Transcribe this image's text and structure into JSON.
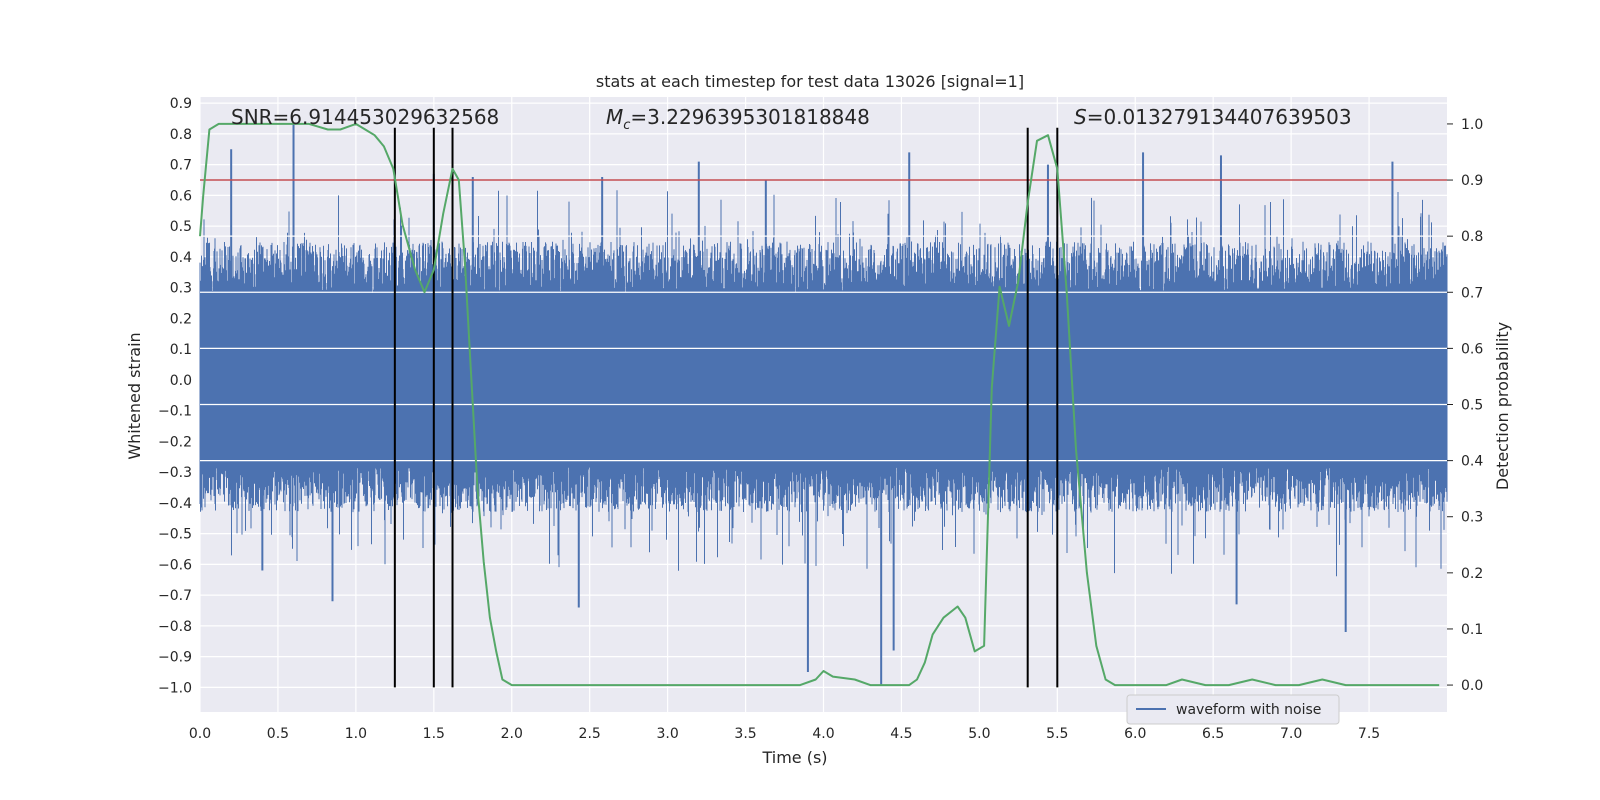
{
  "chart_data": {
    "type": "line",
    "title": "stats at each timestep for test data 13026 [signal=1]",
    "xlabel": "Time (s)",
    "ylabel_left": "Whitened strain",
    "ylabel_right": "Detection probability",
    "xlim": [
      0.0,
      8.0
    ],
    "ylim_left": [
      -1.08,
      0.92
    ],
    "ylim_right": [
      -0.048,
      1.048
    ],
    "x_ticks": [
      0.0,
      0.5,
      1.0,
      1.5,
      2.0,
      2.5,
      3.0,
      3.5,
      4.0,
      4.5,
      5.0,
      5.5,
      6.0,
      6.5,
      7.0,
      7.5
    ],
    "x_tick_labels": [
      "0.0",
      "0.5",
      "1.0",
      "1.5",
      "2.0",
      "2.5",
      "3.0",
      "3.5",
      "4.0",
      "4.5",
      "5.0",
      "5.5",
      "6.0",
      "6.5",
      "7.0",
      "7.5"
    ],
    "y_left_ticks": [
      0.9,
      0.8,
      0.7,
      0.6,
      0.5,
      0.4,
      0.3,
      0.2,
      0.1,
      0.0,
      -0.1,
      -0.2,
      -0.3,
      -0.4,
      -0.5,
      -0.6,
      -0.7,
      -0.8,
      -0.9,
      -1.0
    ],
    "y_left_tick_labels": [
      "0.9",
      "0.8",
      "0.7",
      "0.6",
      "0.5",
      "0.4",
      "0.3",
      "0.2",
      "0.1",
      "0.0",
      "−0.1",
      "−0.2",
      "−0.3",
      "−0.4",
      "−0.5",
      "−0.6",
      "−0.7",
      "−0.8",
      "−0.9",
      "−1.0"
    ],
    "y_right_ticks": [
      1.0,
      0.9,
      0.8,
      0.7,
      0.6,
      0.5,
      0.4,
      0.3,
      0.2,
      0.1,
      0.0
    ],
    "y_right_tick_labels": [
      "1.0",
      "0.9",
      "0.8",
      "0.7",
      "0.6",
      "0.5",
      "0.4",
      "0.3",
      "0.2",
      "0.1",
      "0.0"
    ],
    "grid": true,
    "annotations": {
      "snr": "SNR=6.914453029632568",
      "mc_symbol": "M",
      "mc_sub": "c",
      "mc_value": "=3.2296395301818848",
      "s_symbol": "S",
      "s_value": "=0.013279134407639503"
    },
    "legend": {
      "label": "waveform with noise",
      "placement": "lower-right"
    },
    "threshold_probability": 0.9,
    "vertical_lines_time": [
      1.25,
      1.5,
      1.62,
      5.31,
      5.5
    ],
    "vertical_lines_range": [
      -1.0,
      0.82
    ],
    "waveform": {
      "name": "waveform with noise",
      "color": "#4c72b0",
      "core_band": [
        -0.28,
        0.28
      ],
      "typical_envelope": [
        -0.43,
        0.45
      ],
      "peaks_up": [
        [
          0.2,
          0.75
        ],
        [
          0.6,
          0.83
        ],
        [
          1.5,
          0.67
        ],
        [
          1.75,
          0.66
        ],
        [
          2.58,
          0.66
        ],
        [
          3.2,
          0.71
        ],
        [
          3.63,
          0.65
        ],
        [
          4.55,
          0.74
        ],
        [
          5.44,
          0.7
        ],
        [
          6.05,
          0.74
        ],
        [
          6.55,
          0.73
        ],
        [
          7.65,
          0.71
        ]
      ],
      "peaks_down": [
        [
          0.4,
          -0.62
        ],
        [
          0.85,
          -0.72
        ],
        [
          2.43,
          -0.74
        ],
        [
          3.9,
          -0.95
        ],
        [
          4.37,
          -0.99
        ],
        [
          4.45,
          -0.88
        ],
        [
          6.65,
          -0.73
        ],
        [
          7.35,
          -0.82
        ]
      ]
    },
    "series": [
      {
        "name": "Detection probability",
        "axis": "right",
        "color": "#55a868",
        "x": [
          0.0,
          0.02,
          0.06,
          0.12,
          0.2,
          0.3,
          0.5,
          0.7,
          0.82,
          0.9,
          1.0,
          1.06,
          1.12,
          1.18,
          1.24,
          1.3,
          1.38,
          1.44,
          1.5,
          1.56,
          1.62,
          1.66,
          1.7,
          1.74,
          1.78,
          1.82,
          1.86,
          1.9,
          1.94,
          2.0,
          2.3,
          2.7,
          3.0,
          3.3,
          3.5,
          3.7,
          3.85,
          3.95,
          4.0,
          4.06,
          4.2,
          4.3,
          4.4,
          4.55,
          4.6,
          4.65,
          4.7,
          4.77,
          4.86,
          4.91,
          4.97,
          5.03,
          5.08,
          5.13,
          5.19,
          5.25,
          5.31,
          5.37,
          5.44,
          5.5,
          5.56,
          5.62,
          5.69,
          5.75,
          5.81,
          5.87,
          6.0,
          6.1,
          6.2,
          6.3,
          6.45,
          6.6,
          6.75,
          6.9,
          7.05,
          7.2,
          7.35,
          7.5,
          7.7,
          7.95
        ],
        "values": [
          0.8,
          0.87,
          0.99,
          1.0,
          1.0,
          1.0,
          1.0,
          1.0,
          0.99,
          0.99,
          1.0,
          0.99,
          0.98,
          0.96,
          0.92,
          0.82,
          0.74,
          0.7,
          0.74,
          0.84,
          0.92,
          0.9,
          0.75,
          0.55,
          0.35,
          0.22,
          0.12,
          0.06,
          0.01,
          0.0,
          0.0,
          0.0,
          0.0,
          0.0,
          0.0,
          0.0,
          0.0,
          0.01,
          0.025,
          0.015,
          0.01,
          0.0,
          0.0,
          0.0,
          0.01,
          0.04,
          0.09,
          0.12,
          0.14,
          0.12,
          0.06,
          0.07,
          0.53,
          0.71,
          0.64,
          0.72,
          0.86,
          0.97,
          0.98,
          0.92,
          0.7,
          0.42,
          0.2,
          0.07,
          0.01,
          0.0,
          0.0,
          0.0,
          0.0,
          0.01,
          0.0,
          0.0,
          0.01,
          0.0,
          0.0,
          0.01,
          0.0,
          0.0,
          0.0,
          0.0
        ]
      }
    ]
  }
}
